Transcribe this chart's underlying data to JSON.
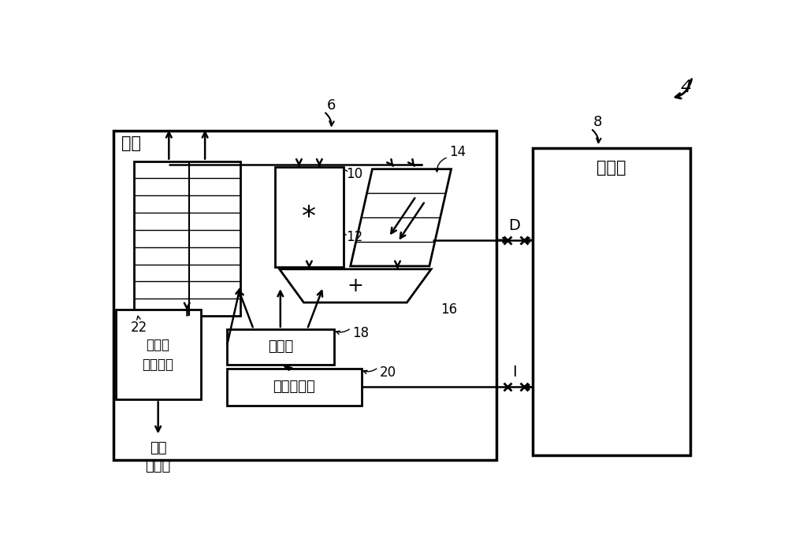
{
  "bg_color": "#ffffff",
  "line_color": "#000000",
  "fig_width": 10.0,
  "fig_height": 7.11,
  "labels": {
    "title_num": "4",
    "core_label": "核心",
    "memory_label": "存储器",
    "debug_label": "调试和\n诊断电路",
    "trace_label": "跟踪\n数据流",
    "num_6": "6",
    "num_8": "8",
    "num_10": "10",
    "num_12": "12",
    "num_14": "14",
    "num_16": "16",
    "num_18": "18",
    "num_20": "20",
    "num_22": "22",
    "decoder_label": "解码器",
    "pipeline_label": "指令流水线",
    "mul_label": "*",
    "add_label": "+",
    "D_label": "D",
    "I_label": "I"
  }
}
